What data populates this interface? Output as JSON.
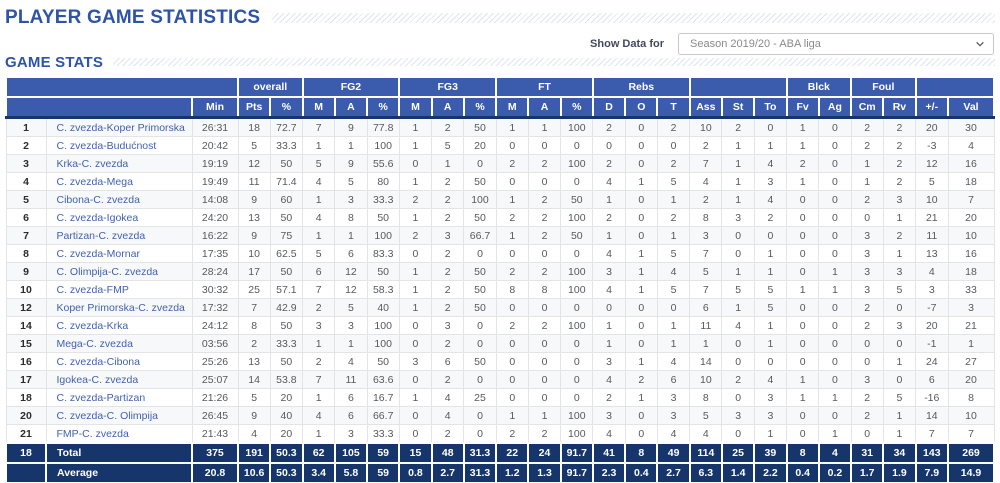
{
  "header": {
    "title": "PLAYER GAME STATISTICS",
    "section_title": "GAME STATS"
  },
  "controls": {
    "label": "Show Data for",
    "selected_option": "Season 2019/20 - ABA liga"
  },
  "colors": {
    "accent_blue": "#2d54a7",
    "table_header_bg": "#3b5cad",
    "totals_navy": "#16366b",
    "link_blue": "#4161ae"
  },
  "table": {
    "group_headers": [
      {
        "label": "",
        "span": 3
      },
      {
        "label": "overall",
        "span": 2
      },
      {
        "label": "FG2",
        "span": 3
      },
      {
        "label": "FG3",
        "span": 3
      },
      {
        "label": "FT",
        "span": 3
      },
      {
        "label": "Rebs",
        "span": 3
      },
      {
        "label": "",
        "span": 3
      },
      {
        "label": "Blck",
        "span": 2
      },
      {
        "label": "Foul",
        "span": 2
      },
      {
        "label": "",
        "span": 2
      }
    ],
    "columns": [
      "Min",
      "Pts",
      "%",
      "M",
      "A",
      "%",
      "M",
      "A",
      "%",
      "M",
      "A",
      "%",
      "D",
      "O",
      "T",
      "Ass",
      "St",
      "To",
      "Fv",
      "Ag",
      "Cm",
      "Rv",
      "+/-",
      "Val"
    ],
    "rows": [
      {
        "num": "1",
        "game": "C. zvezda-Koper Primorska",
        "values": [
          "26:31",
          "18",
          "72.7",
          "7",
          "9",
          "77.8",
          "1",
          "2",
          "50",
          "1",
          "1",
          "100",
          "2",
          "0",
          "2",
          "10",
          "2",
          "0",
          "1",
          "0",
          "2",
          "2",
          "20",
          "30"
        ]
      },
      {
        "num": "2",
        "game": "C. zvezda-Budućnost",
        "values": [
          "20:42",
          "5",
          "33.3",
          "1",
          "1",
          "100",
          "1",
          "5",
          "20",
          "0",
          "0",
          "0",
          "0",
          "0",
          "0",
          "2",
          "1",
          "1",
          "1",
          "0",
          "2",
          "2",
          "-3",
          "4"
        ]
      },
      {
        "num": "3",
        "game": "Krka-C. zvezda",
        "values": [
          "19:19",
          "12",
          "50",
          "5",
          "9",
          "55.6",
          "0",
          "1",
          "0",
          "2",
          "2",
          "100",
          "2",
          "0",
          "2",
          "7",
          "1",
          "4",
          "2",
          "0",
          "1",
          "2",
          "12",
          "16"
        ]
      },
      {
        "num": "4",
        "game": "C. zvezda-Mega",
        "values": [
          "19:49",
          "11",
          "71.4",
          "4",
          "5",
          "80",
          "1",
          "2",
          "50",
          "0",
          "0",
          "0",
          "4",
          "1",
          "5",
          "4",
          "1",
          "3",
          "1",
          "0",
          "1",
          "2",
          "5",
          "18"
        ]
      },
      {
        "num": "5",
        "game": "Cibona-C. zvezda",
        "values": [
          "14:08",
          "9",
          "60",
          "1",
          "3",
          "33.3",
          "2",
          "2",
          "100",
          "1",
          "2",
          "50",
          "1",
          "0",
          "1",
          "2",
          "1",
          "4",
          "0",
          "0",
          "2",
          "3",
          "10",
          "7"
        ]
      },
      {
        "num": "6",
        "game": "C. zvezda-Igokea",
        "values": [
          "24:20",
          "13",
          "50",
          "4",
          "8",
          "50",
          "1",
          "2",
          "50",
          "2",
          "2",
          "100",
          "2",
          "0",
          "2",
          "8",
          "3",
          "2",
          "0",
          "0",
          "0",
          "1",
          "21",
          "20"
        ]
      },
      {
        "num": "7",
        "game": "Partizan-C. zvezda",
        "values": [
          "16:22",
          "9",
          "75",
          "1",
          "1",
          "100",
          "2",
          "3",
          "66.7",
          "1",
          "2",
          "50",
          "1",
          "0",
          "1",
          "3",
          "0",
          "0",
          "0",
          "0",
          "3",
          "2",
          "11",
          "10"
        ]
      },
      {
        "num": "8",
        "game": "C. zvezda-Mornar",
        "values": [
          "17:35",
          "10",
          "62.5",
          "5",
          "6",
          "83.3",
          "0",
          "2",
          "0",
          "0",
          "0",
          "0",
          "4",
          "1",
          "5",
          "7",
          "0",
          "1",
          "0",
          "0",
          "3",
          "1",
          "13",
          "16"
        ]
      },
      {
        "num": "9",
        "game": "C. Olimpija-C. zvezda",
        "values": [
          "28:24",
          "17",
          "50",
          "6",
          "12",
          "50",
          "1",
          "2",
          "50",
          "2",
          "2",
          "100",
          "3",
          "1",
          "4",
          "5",
          "1",
          "1",
          "0",
          "1",
          "3",
          "3",
          "4",
          "18"
        ]
      },
      {
        "num": "10",
        "game": "C. zvezda-FMP",
        "values": [
          "30:32",
          "25",
          "57.1",
          "7",
          "12",
          "58.3",
          "1",
          "2",
          "50",
          "8",
          "8",
          "100",
          "4",
          "1",
          "5",
          "7",
          "5",
          "5",
          "1",
          "1",
          "3",
          "5",
          "3",
          "33"
        ]
      },
      {
        "num": "12",
        "game": "Koper Primorska-C. zvezda",
        "values": [
          "17:32",
          "7",
          "42.9",
          "2",
          "5",
          "40",
          "1",
          "2",
          "50",
          "0",
          "0",
          "0",
          "0",
          "0",
          "0",
          "6",
          "1",
          "5",
          "0",
          "0",
          "2",
          "0",
          "-7",
          "3"
        ]
      },
      {
        "num": "14",
        "game": "C. zvezda-Krka",
        "values": [
          "24:12",
          "8",
          "50",
          "3",
          "3",
          "100",
          "0",
          "3",
          "0",
          "2",
          "2",
          "100",
          "1",
          "0",
          "1",
          "11",
          "4",
          "1",
          "0",
          "0",
          "2",
          "3",
          "20",
          "21"
        ]
      },
      {
        "num": "15",
        "game": "Mega-C. zvezda",
        "values": [
          "03:56",
          "2",
          "33.3",
          "1",
          "1",
          "100",
          "0",
          "2",
          "0",
          "0",
          "0",
          "0",
          "1",
          "0",
          "1",
          "1",
          "0",
          "1",
          "0",
          "0",
          "0",
          "0",
          "-1",
          "1"
        ]
      },
      {
        "num": "16",
        "game": "C. zvezda-Cibona",
        "values": [
          "25:26",
          "13",
          "50",
          "2",
          "4",
          "50",
          "3",
          "6",
          "50",
          "0",
          "0",
          "0",
          "3",
          "1",
          "4",
          "14",
          "0",
          "0",
          "0",
          "0",
          "0",
          "1",
          "24",
          "27"
        ]
      },
      {
        "num": "17",
        "game": "Igokea-C. zvezda",
        "values": [
          "25:07",
          "14",
          "53.8",
          "7",
          "11",
          "63.6",
          "0",
          "2",
          "0",
          "0",
          "0",
          "0",
          "4",
          "2",
          "6",
          "10",
          "2",
          "4",
          "1",
          "0",
          "3",
          "0",
          "6",
          "20"
        ]
      },
      {
        "num": "18",
        "game": "C. zvezda-Partizan",
        "values": [
          "21:26",
          "5",
          "20",
          "1",
          "6",
          "16.7",
          "1",
          "4",
          "25",
          "0",
          "0",
          "0",
          "2",
          "1",
          "3",
          "8",
          "0",
          "3",
          "1",
          "1",
          "2",
          "5",
          "-16",
          "8"
        ]
      },
      {
        "num": "20",
        "game": "C. zvezda-C. Olimpija",
        "values": [
          "26:45",
          "9",
          "40",
          "4",
          "6",
          "66.7",
          "0",
          "4",
          "0",
          "1",
          "1",
          "100",
          "3",
          "0",
          "3",
          "5",
          "3",
          "3",
          "0",
          "0",
          "2",
          "1",
          "14",
          "10"
        ]
      },
      {
        "num": "21",
        "game": "FMP-C. zvezda",
        "values": [
          "21:43",
          "4",
          "20",
          "1",
          "3",
          "33.3",
          "0",
          "2",
          "0",
          "2",
          "2",
          "100",
          "4",
          "0",
          "4",
          "4",
          "0",
          "1",
          "0",
          "1",
          "0",
          "1",
          "7",
          "7"
        ]
      }
    ],
    "total_row": {
      "num": "18",
      "label": "Total",
      "values": [
        "375",
        "191",
        "50.3",
        "62",
        "105",
        "59",
        "15",
        "48",
        "31.3",
        "22",
        "24",
        "91.7",
        "41",
        "8",
        "49",
        "114",
        "25",
        "39",
        "8",
        "4",
        "31",
        "34",
        "143",
        "269"
      ]
    },
    "average_row": {
      "num": "",
      "label": "Average",
      "values": [
        "20.8",
        "10.6",
        "50.3",
        "3.4",
        "5.8",
        "59",
        "0.8",
        "2.7",
        "31.3",
        "1.2",
        "1.3",
        "91.7",
        "2.3",
        "0.4",
        "2.7",
        "6.3",
        "1.4",
        "2.2",
        "0.4",
        "0.2",
        "1.7",
        "1.9",
        "7.9",
        "14.9"
      ]
    }
  }
}
